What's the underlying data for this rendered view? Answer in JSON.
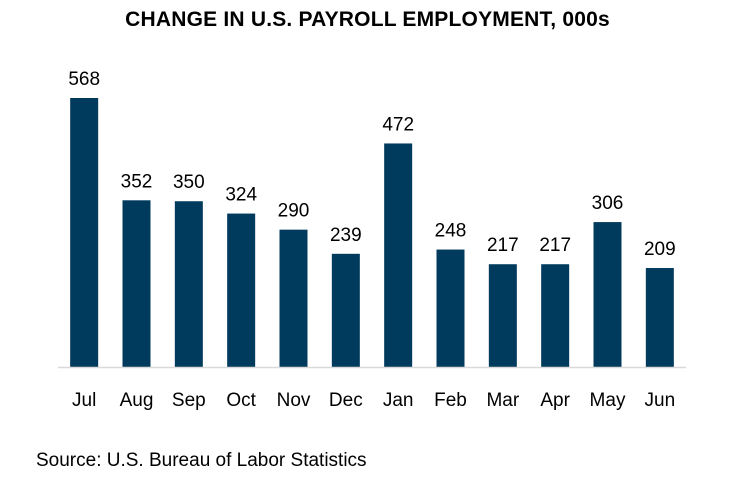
{
  "chart_data": {
    "type": "bar",
    "title": "CHANGE IN U.S. PAYROLL EMPLOYMENT, 000s",
    "categories": [
      "Jul",
      "Aug",
      "Sep",
      "Oct",
      "Nov",
      "Dec",
      "Jan",
      "Feb",
      "Mar",
      "Apr",
      "May",
      "Jun"
    ],
    "values": [
      568,
      352,
      350,
      324,
      290,
      239,
      472,
      248,
      217,
      217,
      306,
      209
    ],
    "xlabel": "",
    "ylabel": "",
    "ylim": [
      0,
      568
    ],
    "grid": false,
    "legend": "none",
    "bar_color": "#003a5d",
    "source": "Source: U.S. Bureau of Labor Statistics"
  }
}
